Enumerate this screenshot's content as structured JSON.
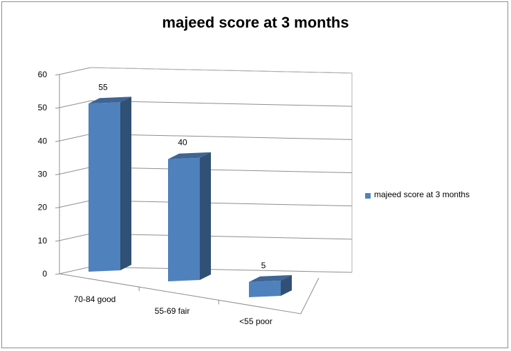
{
  "chart_data": {
    "type": "bar",
    "title": "majeed score at 3 months",
    "categories": [
      "70-84 good",
      "55-69 fair",
      "<55 poor"
    ],
    "series": [
      {
        "name": "majeed score at 3 months",
        "values": [
          55,
          40,
          5
        ],
        "color": "#4f81bd"
      }
    ],
    "data_labels": [
      "55",
      "40",
      "5"
    ],
    "y_ticks": [
      0,
      10,
      20,
      30,
      40,
      50,
      60
    ],
    "ylim": [
      0,
      60
    ],
    "grid": true,
    "legend_position": "right",
    "style": "3d-perspective"
  }
}
